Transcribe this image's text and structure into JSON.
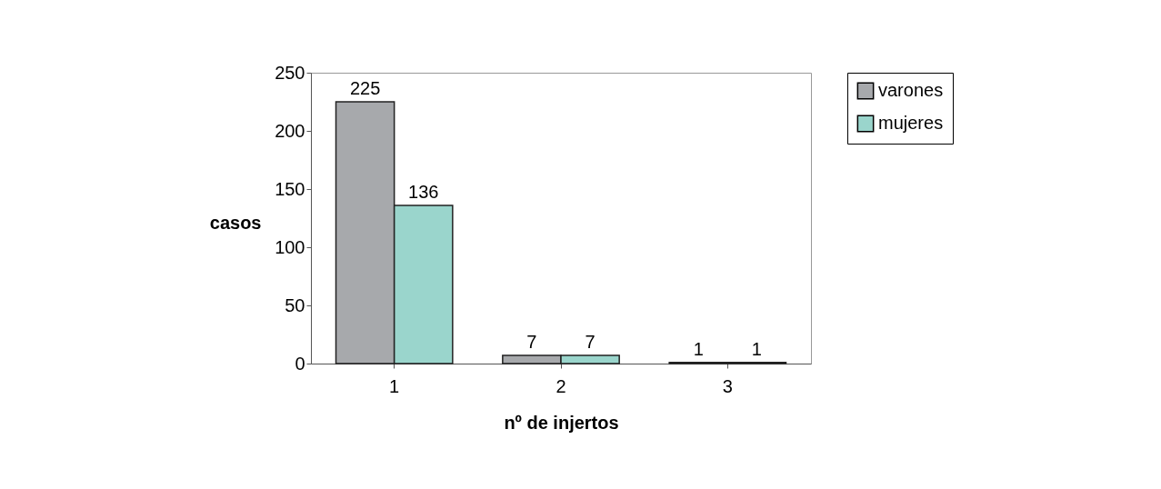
{
  "chart_data": {
    "type": "bar",
    "categories": [
      "1",
      "2",
      "3"
    ],
    "series": [
      {
        "name": "varones",
        "color": "#a7a9ac",
        "values": [
          225,
          7,
          1
        ]
      },
      {
        "name": "mujeres",
        "color": "#9ad5cc",
        "values": [
          136,
          7,
          1
        ]
      }
    ],
    "xlabel": "nº de injertos",
    "ylabel": "casos",
    "ylim": [
      0,
      250
    ],
    "yticks": [
      0,
      50,
      100,
      150,
      200,
      250
    ],
    "data_labels": true,
    "grid": false,
    "legend": "right"
  }
}
